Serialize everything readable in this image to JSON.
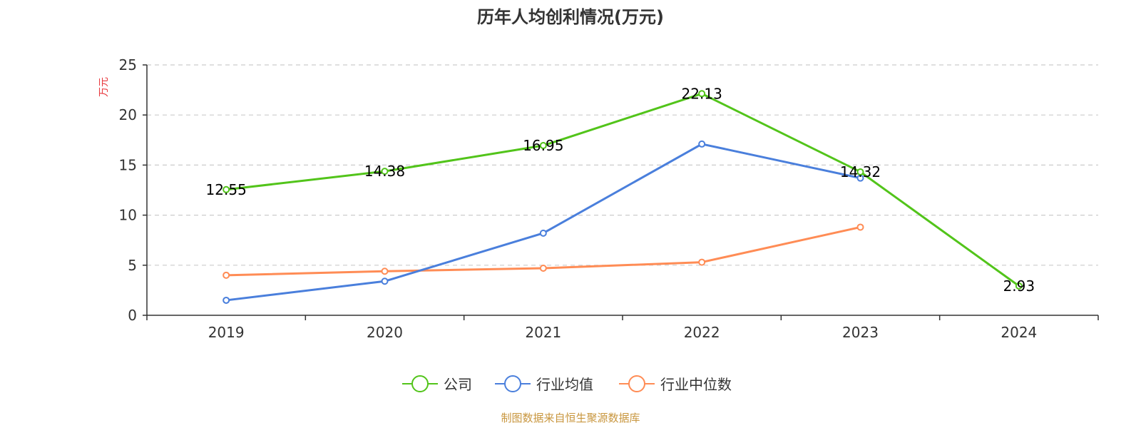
{
  "chart_data": {
    "type": "line",
    "title": "历年人均创利情况(万元)",
    "ylabel": "万元",
    "xlabel": "",
    "ylim": [
      0,
      25
    ],
    "yticks": [
      0,
      5,
      10,
      15,
      20,
      25
    ],
    "categories": [
      "2019",
      "2020",
      "2021",
      "2022",
      "2023",
      "2024"
    ],
    "grid": true,
    "legend_position": "bottom-center",
    "series": [
      {
        "name": "公司",
        "color": "#52c41a",
        "values": [
          12.55,
          14.38,
          16.95,
          22.13,
          14.32,
          2.93
        ],
        "labels": [
          "12.55",
          "14.38",
          "16.95",
          "22.13",
          "14.32",
          "2.93"
        ]
      },
      {
        "name": "行业均值",
        "color": "#4a7fdc",
        "values": [
          1.5,
          3.4,
          8.2,
          17.1,
          13.7,
          null
        ]
      },
      {
        "name": "行业中位数",
        "color": "#ff8c55",
        "values": [
          4.0,
          4.4,
          4.7,
          5.3,
          8.8,
          null
        ]
      }
    ],
    "source": "制图数据来自恒生聚源数据库"
  },
  "colors": {
    "ylabel": "#e8383d",
    "source": "#c8963e",
    "axis": "#333333",
    "grid": "#cccccc"
  }
}
